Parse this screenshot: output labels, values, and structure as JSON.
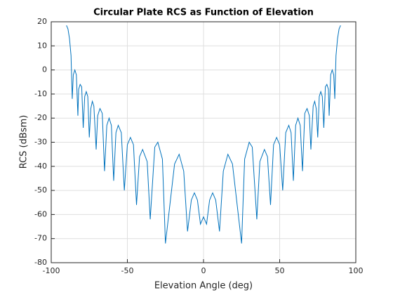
{
  "chart_data": {
    "type": "line",
    "title": "Circular Plate RCS as Function of Elevation",
    "xlabel": "Elevation Angle (deg)",
    "ylabel": "RCS (dBsm)",
    "x": [
      -90,
      -89,
      -88,
      -87,
      -86.2,
      -85.5,
      -84.5,
      -83.5,
      -82.5,
      -82,
      -81,
      -80,
      -79,
      -78,
      -77,
      -76,
      -75,
      -74,
      -73,
      -72,
      -70.5,
      -69.5,
      -68,
      -66.5,
      -65,
      -63.5,
      -62,
      -60.5,
      -59,
      -57.5,
      -56,
      -54,
      -52,
      -50,
      -48,
      -46,
      -44,
      -42,
      -40,
      -37,
      -35,
      -32,
      -30,
      -27,
      -25,
      -19,
      -16,
      -13,
      -10.5,
      -8,
      -6,
      -4,
      -2,
      0,
      2,
      4,
      6,
      8,
      10.5,
      13,
      16,
      19,
      25,
      27,
      30,
      32,
      35,
      37,
      40,
      42,
      44,
      46,
      48,
      50,
      52,
      54,
      56,
      57.5,
      59,
      60.5,
      62,
      63.5,
      65,
      66.5,
      68,
      69.5,
      70.5,
      72,
      73,
      74,
      75,
      76,
      77,
      78,
      79,
      80,
      81,
      82,
      82.5,
      83.5,
      84.5,
      85.5,
      86.2,
      87,
      88,
      89,
      90
    ],
    "series": [
      {
        "name": "RCS",
        "color": "#0072bd",
        "values": [
          18.5,
          17,
          13,
          6,
          -12,
          -2,
          0,
          -2,
          -19,
          -8,
          -6,
          -7,
          -24,
          -11,
          -9,
          -11,
          -28,
          -16,
          -13,
          -15,
          -33,
          -19,
          -16,
          -18,
          -42,
          -23,
          -20,
          -23,
          -46,
          -26,
          -23,
          -26,
          -50,
          -31,
          -28,
          -31,
          -56,
          -36,
          -33,
          -38,
          -62,
          -32,
          -30,
          -37,
          -72,
          -39,
          -35,
          -42,
          -67,
          -54,
          -51,
          -54,
          -64,
          -61,
          -64,
          -54,
          -51,
          -54,
          -67,
          -42,
          -35,
          -39,
          -72,
          -37,
          -30,
          -32,
          -62,
          -38,
          -33,
          -36,
          -56,
          -31,
          -28,
          -31,
          -50,
          -26,
          -23,
          -26,
          -46,
          -23,
          -20,
          -23,
          -42,
          -18,
          -16,
          -19,
          -33,
          -15,
          -13,
          -16,
          -28,
          -11,
          -9,
          -11,
          -24,
          -7,
          -6,
          -8,
          -19,
          -2,
          0,
          -2,
          -12,
          6,
          13,
          17,
          18.5
        ]
      }
    ],
    "xlim": [
      -100,
      100
    ],
    "xticks": [
      -100,
      -50,
      0,
      50,
      100
    ],
    "ylim": [
      -80,
      20
    ],
    "yticks": [
      -80,
      -70,
      -60,
      -50,
      -40,
      -30,
      -20,
      -10,
      0,
      10,
      20
    ],
    "grid": true
  }
}
